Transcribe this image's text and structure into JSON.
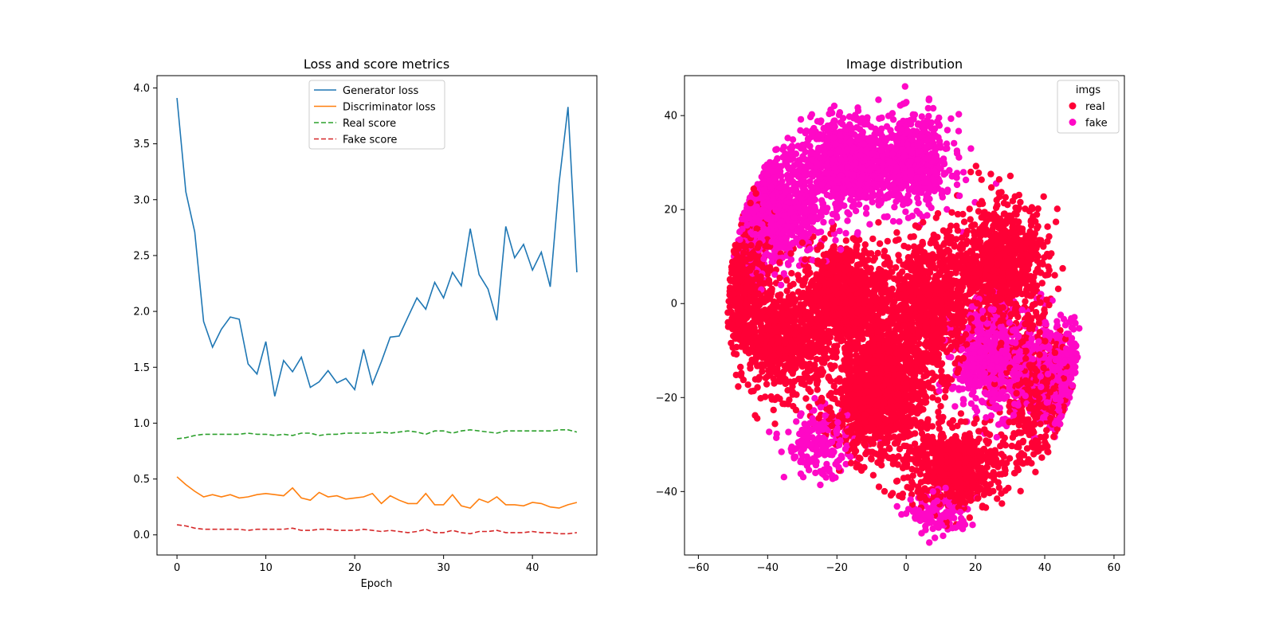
{
  "colors": {
    "generator_loss": "#1f77b4",
    "discriminator_loss": "#ff7f0e",
    "real_score": "#2ca02c",
    "fake_score": "#d62728",
    "real_points": "#ff0036",
    "fake_points": "#ff08c6"
  },
  "chart_data": [
    {
      "type": "line",
      "title": "Loss and score metrics",
      "xlabel": "Epoch",
      "ylabel": "",
      "xlim": [
        -2.25,
        47.25
      ],
      "ylim": [
        -0.18,
        4.11
      ],
      "xticks": [
        0,
        10,
        20,
        30,
        40
      ],
      "yticks": [
        0.0,
        0.5,
        1.0,
        1.5,
        2.0,
        2.5,
        3.0,
        3.5,
        4.0
      ],
      "ytick_labels": [
        "0.0",
        "0.5",
        "1.0",
        "1.5",
        "2.0",
        "2.5",
        "3.0",
        "3.5",
        "4.0"
      ],
      "grid": false,
      "legend_position": "upper center",
      "x": [
        0,
        1,
        2,
        3,
        4,
        5,
        6,
        7,
        8,
        9,
        10,
        11,
        12,
        13,
        14,
        15,
        16,
        17,
        18,
        19,
        20,
        21,
        22,
        23,
        24,
        25,
        26,
        27,
        28,
        29,
        30,
        31,
        32,
        33,
        34,
        35,
        36,
        37,
        38,
        39,
        40,
        41,
        42,
        43,
        44,
        45
      ],
      "series": [
        {
          "name": "Generator loss",
          "style": "solid",
          "values": [
            3.91,
            3.07,
            2.71,
            1.91,
            1.68,
            1.84,
            1.95,
            1.93,
            1.53,
            1.44,
            1.73,
            1.24,
            1.56,
            1.46,
            1.59,
            1.32,
            1.37,
            1.47,
            1.36,
            1.4,
            1.3,
            1.66,
            1.35,
            1.55,
            1.77,
            1.78,
            1.95,
            2.12,
            2.02,
            2.26,
            2.12,
            2.35,
            2.23,
            2.74,
            2.33,
            2.2,
            1.92,
            2.76,
            2.48,
            2.6,
            2.37,
            2.53,
            2.22,
            3.15,
            3.83,
            2.35
          ]
        },
        {
          "name": "Discriminator loss",
          "style": "solid",
          "values": [
            0.52,
            0.45,
            0.39,
            0.34,
            0.36,
            0.34,
            0.36,
            0.33,
            0.34,
            0.36,
            0.37,
            0.36,
            0.35,
            0.42,
            0.33,
            0.31,
            0.38,
            0.34,
            0.35,
            0.32,
            0.33,
            0.34,
            0.37,
            0.28,
            0.35,
            0.31,
            0.28,
            0.28,
            0.37,
            0.27,
            0.27,
            0.36,
            0.26,
            0.24,
            0.32,
            0.29,
            0.34,
            0.27,
            0.27,
            0.26,
            0.29,
            0.28,
            0.25,
            0.24,
            0.27,
            0.29
          ]
        },
        {
          "name": "Real score",
          "style": "dashed",
          "values": [
            0.86,
            0.87,
            0.89,
            0.9,
            0.9,
            0.9,
            0.9,
            0.9,
            0.91,
            0.9,
            0.9,
            0.89,
            0.9,
            0.89,
            0.91,
            0.91,
            0.89,
            0.9,
            0.9,
            0.91,
            0.91,
            0.91,
            0.91,
            0.92,
            0.91,
            0.92,
            0.93,
            0.92,
            0.9,
            0.93,
            0.93,
            0.91,
            0.93,
            0.94,
            0.93,
            0.92,
            0.91,
            0.93,
            0.93,
            0.93,
            0.93,
            0.93,
            0.93,
            0.94,
            0.94,
            0.92
          ]
        },
        {
          "name": "Fake score",
          "style": "dashed",
          "values": [
            0.09,
            0.08,
            0.06,
            0.05,
            0.05,
            0.05,
            0.05,
            0.05,
            0.04,
            0.05,
            0.05,
            0.05,
            0.05,
            0.06,
            0.04,
            0.04,
            0.05,
            0.05,
            0.04,
            0.04,
            0.04,
            0.05,
            0.04,
            0.03,
            0.04,
            0.03,
            0.02,
            0.03,
            0.05,
            0.02,
            0.02,
            0.04,
            0.02,
            0.01,
            0.03,
            0.03,
            0.04,
            0.02,
            0.02,
            0.02,
            0.03,
            0.02,
            0.02,
            0.01,
            0.01,
            0.02
          ]
        }
      ]
    },
    {
      "type": "scatter",
      "title": "Image distribution",
      "xlabel": "",
      "ylabel": "",
      "xlim": [
        -64,
        63
      ],
      "ylim": [
        -53.5,
        48.5
      ],
      "xticks": [
        -60,
        -40,
        -20,
        0,
        20,
        40,
        60
      ],
      "xtick_labels": [
        "−60",
        "−40",
        "−20",
        "0",
        "20",
        "40",
        "60"
      ],
      "yticks": [
        -40,
        -20,
        0,
        20,
        40
      ],
      "ytick_labels": [
        "−40",
        "−20",
        "0",
        "20",
        "40"
      ],
      "grid": false,
      "legend_title": "imgs",
      "legend_position": "upper right",
      "series": [
        {
          "name": "real",
          "clusters": [
            {
              "center": [
                -48,
                5
              ],
              "spread": [
                7,
                12
              ],
              "count": 700
            },
            {
              "center": [
                -35,
                -8
              ],
              "spread": [
                9,
                8
              ],
              "count": 650
            },
            {
              "center": [
                -18,
                2
              ],
              "spread": [
                9,
                8
              ],
              "count": 800
            },
            {
              "center": [
                -5,
                -15
              ],
              "spread": [
                9,
                12
              ],
              "count": 900
            },
            {
              "center": [
                8,
                0
              ],
              "spread": [
                9,
                10
              ],
              "count": 800
            },
            {
              "center": [
                28,
                8
              ],
              "spread": [
                9,
                10
              ],
              "count": 800
            },
            {
              "center": [
                38,
                -20
              ],
              "spread": [
                7,
                10
              ],
              "count": 450
            },
            {
              "center": [
                14,
                -35
              ],
              "spread": [
                10,
                6
              ],
              "count": 650
            },
            {
              "center": [
                -12,
                -22
              ],
              "spread": [
                8,
                7
              ],
              "count": 500
            }
          ]
        },
        {
          "name": "fake",
          "clusters": [
            {
              "center": [
                -38,
                20
              ],
              "spread": [
                9,
                9
              ],
              "count": 900
            },
            {
              "center": [
                -18,
                30
              ],
              "spread": [
                9,
                7
              ],
              "count": 800
            },
            {
              "center": [
                2,
                30
              ],
              "spread": [
                8,
                7
              ],
              "count": 600
            },
            {
              "center": [
                25,
                -12
              ],
              "spread": [
                8,
                8
              ],
              "count": 600
            },
            {
              "center": [
                45,
                -15
              ],
              "spread": [
                7,
                8
              ],
              "count": 550
            },
            {
              "center": [
                10,
                -45
              ],
              "spread": [
                6,
                3
              ],
              "count": 150
            },
            {
              "center": [
                -25,
                -30
              ],
              "spread": [
                7,
                5
              ],
              "count": 200
            }
          ]
        }
      ]
    }
  ]
}
